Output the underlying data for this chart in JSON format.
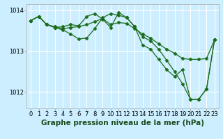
{
  "title": "Graphe pression niveau de la mer (hPa)",
  "background_color": "#cceeff",
  "grid_color": "#ffffff",
  "line_color": "#1a6b1a",
  "marker": "D",
  "markersize": 2.5,
  "linewidth": 0.9,
  "hours": [
    0,
    1,
    2,
    3,
    4,
    5,
    6,
    7,
    8,
    9,
    10,
    11,
    12,
    13,
    14,
    15,
    16,
    17,
    18,
    19,
    20,
    21,
    22,
    23
  ],
  "series1": [
    1013.75,
    1013.85,
    1013.65,
    1013.6,
    1013.55,
    1013.58,
    1013.6,
    1013.65,
    1013.72,
    1013.8,
    1013.65,
    1013.7,
    1013.68,
    1013.55,
    1013.42,
    1013.32,
    1013.18,
    1013.05,
    1012.95,
    1012.82,
    1012.8,
    1012.8,
    1012.82,
    1013.28
  ],
  "series2": [
    1013.75,
    1013.85,
    1013.65,
    1013.58,
    1013.52,
    1013.42,
    1013.3,
    1013.32,
    1013.55,
    1013.82,
    1013.92,
    1013.88,
    1013.82,
    1013.6,
    1013.35,
    1013.25,
    1013.05,
    1012.78,
    1012.5,
    1012.2,
    1011.82,
    1011.82,
    1012.08,
    1013.28
  ],
  "series3": [
    1013.75,
    1013.85,
    1013.65,
    1013.58,
    1013.6,
    1013.65,
    1013.62,
    1013.85,
    1013.92,
    1013.78,
    1013.58,
    1013.95,
    1013.82,
    1013.6,
    1013.15,
    1013.05,
    1012.8,
    1012.55,
    1012.38,
    1012.55,
    1011.82,
    1011.82,
    1012.08,
    1013.28
  ],
  "ylim": [
    1011.6,
    1014.15
  ],
  "yticks": [
    1012,
    1013,
    1014
  ],
  "xlim": [
    -0.5,
    23.5
  ],
  "title_fontsize": 7.5,
  "tick_fontsize": 6.0
}
